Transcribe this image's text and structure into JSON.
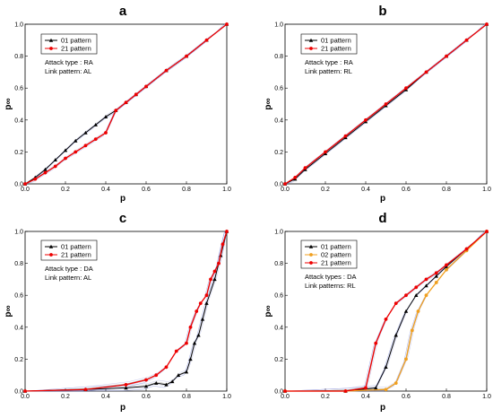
{
  "chart_data": [
    {
      "panel": "a",
      "type": "line",
      "xlabel": "p",
      "ylabel": "p∞",
      "xlim": [
        0,
        1
      ],
      "ylim": [
        0,
        1
      ],
      "x_ticks": [
        "0.0",
        "0.2",
        "0.4",
        "0.6",
        "0.8",
        "1.0"
      ],
      "y_ticks": [
        "0.0",
        "0.2",
        "0.4",
        "0.6",
        "0.8",
        "1.0"
      ],
      "legend": [
        {
          "name": "01 pattern",
          "color": "#000000",
          "marker": "triangle"
        },
        {
          "name": "21 pattern",
          "color": "#ee0000",
          "marker": "circle"
        }
      ],
      "annotations": [
        "Attack type : RA",
        "Link pattern: AL"
      ],
      "series": [
        {
          "name": "01 pattern",
          "color": "#000000",
          "x": [
            0.0,
            0.05,
            0.1,
            0.15,
            0.2,
            0.25,
            0.3,
            0.35,
            0.4,
            0.45,
            0.5,
            0.55,
            0.6,
            0.7,
            0.8,
            0.9,
            1.0
          ],
          "y": [
            0.0,
            0.04,
            0.09,
            0.15,
            0.21,
            0.27,
            0.32,
            0.37,
            0.42,
            0.46,
            0.51,
            0.56,
            0.61,
            0.71,
            0.8,
            0.9,
            1.0
          ]
        },
        {
          "name": "21 pattern",
          "color": "#ee0000",
          "x": [
            0.0,
            0.05,
            0.1,
            0.15,
            0.2,
            0.25,
            0.3,
            0.35,
            0.4,
            0.45,
            0.5,
            0.55,
            0.6,
            0.7,
            0.8,
            0.9,
            1.0
          ],
          "y": [
            0.0,
            0.03,
            0.07,
            0.11,
            0.16,
            0.2,
            0.24,
            0.28,
            0.32,
            0.46,
            0.51,
            0.56,
            0.61,
            0.71,
            0.8,
            0.9,
            1.0
          ]
        }
      ]
    },
    {
      "panel": "b",
      "type": "line",
      "xlabel": "p",
      "ylabel": "p∞",
      "xlim": [
        0,
        1
      ],
      "ylim": [
        0,
        1
      ],
      "x_ticks": [
        "0.0",
        "0.2",
        "0.4",
        "0.6",
        "0.8",
        "1.0"
      ],
      "y_ticks": [
        "0.0",
        "0.2",
        "0.4",
        "0.6",
        "0.8",
        "1.0"
      ],
      "legend": [
        {
          "name": "01 pattern",
          "color": "#000000",
          "marker": "triangle"
        },
        {
          "name": "21 pattern",
          "color": "#ee0000",
          "marker": "circle"
        }
      ],
      "annotations": [
        "Attack type : RA",
        "Link pattern: RL"
      ],
      "series": [
        {
          "name": "01 pattern",
          "color": "#000000",
          "x": [
            0.0,
            0.05,
            0.1,
            0.2,
            0.3,
            0.4,
            0.5,
            0.6,
            0.7,
            0.8,
            0.9,
            1.0
          ],
          "y": [
            0.0,
            0.03,
            0.09,
            0.19,
            0.29,
            0.39,
            0.49,
            0.59,
            0.7,
            0.8,
            0.9,
            1.0
          ]
        },
        {
          "name": "21 pattern",
          "color": "#ee0000",
          "x": [
            0.0,
            0.05,
            0.1,
            0.2,
            0.3,
            0.4,
            0.5,
            0.6,
            0.7,
            0.8,
            0.9,
            1.0
          ],
          "y": [
            0.0,
            0.04,
            0.1,
            0.2,
            0.3,
            0.4,
            0.5,
            0.6,
            0.7,
            0.8,
            0.9,
            1.0
          ]
        }
      ]
    },
    {
      "panel": "c",
      "type": "line",
      "xlabel": "p",
      "ylabel": "p∞",
      "xlim": [
        0,
        1
      ],
      "ylim": [
        0,
        1
      ],
      "x_ticks": [
        "0.0",
        "0.2",
        "0.4",
        "0.6",
        "0.8",
        "1.0"
      ],
      "y_ticks": [
        "0.0",
        "0.2",
        "0.4",
        "0.6",
        "0.8",
        "1.0"
      ],
      "legend": [
        {
          "name": "01 pattern",
          "color": "#000000",
          "marker": "triangle"
        },
        {
          "name": "21 pattern",
          "color": "#ee0000",
          "marker": "circle"
        }
      ],
      "annotations": [
        "Attack type : DA",
        "Link pattern: AL"
      ],
      "series": [
        {
          "name": "01 pattern",
          "color": "#000000",
          "x": [
            0.0,
            0.3,
            0.5,
            0.6,
            0.65,
            0.7,
            0.73,
            0.76,
            0.8,
            0.82,
            0.84,
            0.86,
            0.88,
            0.9,
            0.94,
            0.97,
            1.0
          ],
          "y": [
            0.0,
            0.01,
            0.02,
            0.03,
            0.05,
            0.04,
            0.06,
            0.1,
            0.12,
            0.2,
            0.3,
            0.35,
            0.45,
            0.55,
            0.7,
            0.85,
            1.0
          ]
        },
        {
          "name": "21 pattern",
          "color": "#ee0000",
          "x": [
            0.0,
            0.3,
            0.5,
            0.6,
            0.65,
            0.7,
            0.75,
            0.8,
            0.82,
            0.85,
            0.87,
            0.9,
            0.92,
            0.94,
            0.96,
            0.98,
            1.0
          ],
          "y": [
            0.0,
            0.01,
            0.04,
            0.07,
            0.1,
            0.15,
            0.25,
            0.3,
            0.4,
            0.5,
            0.55,
            0.6,
            0.7,
            0.75,
            0.8,
            0.92,
            1.0
          ]
        }
      ]
    },
    {
      "panel": "d",
      "type": "line",
      "xlabel": "p",
      "ylabel": "p∞",
      "xlim": [
        0,
        1
      ],
      "ylim": [
        0,
        1
      ],
      "x_ticks": [
        "0.0",
        "0.2",
        "0.4",
        "0.6",
        "0.8",
        "1.0"
      ],
      "y_ticks": [
        "0.0",
        "0.2",
        "0.4",
        "0.6",
        "0.8",
        "1.0"
      ],
      "legend": [
        {
          "name": "01 pattern",
          "color": "#000000",
          "marker": "triangle"
        },
        {
          "name": "02 pattern",
          "color": "#f0a020",
          "marker": "circle"
        },
        {
          "name": "21 pattern",
          "color": "#ee0000",
          "marker": "circle"
        }
      ],
      "annotations": [
        "Attack types : DA",
        "Link patterns: RL"
      ],
      "series": [
        {
          "name": "01 pattern",
          "color": "#000000",
          "x": [
            0.0,
            0.3,
            0.45,
            0.5,
            0.55,
            0.6,
            0.65,
            0.7,
            0.75,
            0.8,
            0.9,
            1.0
          ],
          "y": [
            0.0,
            0.0,
            0.02,
            0.15,
            0.35,
            0.5,
            0.6,
            0.66,
            0.72,
            0.78,
            0.89,
            1.0
          ]
        },
        {
          "name": "02 pattern",
          "color": "#f0a020",
          "x": [
            0.0,
            0.3,
            0.5,
            0.55,
            0.6,
            0.63,
            0.66,
            0.7,
            0.75,
            0.8,
            0.9,
            1.0
          ],
          "y": [
            0.0,
            0.0,
            0.01,
            0.05,
            0.2,
            0.38,
            0.5,
            0.6,
            0.68,
            0.76,
            0.88,
            1.0
          ]
        },
        {
          "name": "21 pattern",
          "color": "#ee0000",
          "x": [
            0.0,
            0.3,
            0.4,
            0.45,
            0.5,
            0.55,
            0.6,
            0.65,
            0.7,
            0.75,
            0.8,
            0.9,
            1.0
          ],
          "y": [
            0.0,
            0.0,
            0.02,
            0.3,
            0.45,
            0.55,
            0.6,
            0.65,
            0.7,
            0.74,
            0.79,
            0.89,
            1.0
          ]
        }
      ]
    }
  ]
}
